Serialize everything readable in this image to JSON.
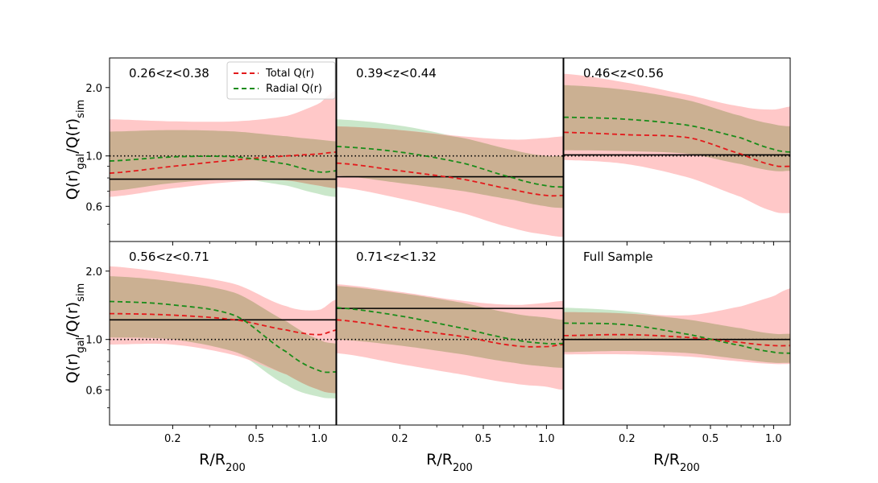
{
  "chart_data": {
    "type": "line",
    "xscale": "log",
    "yscale": "log",
    "xlim": [
      0.1,
      1.2
    ],
    "ylim": [
      0.42,
      2.7
    ],
    "xticks": [
      0.2,
      0.5,
      1.0
    ],
    "xtick_labels": [
      "0.2",
      "0.5",
      "1.0"
    ],
    "yticks": [
      0.6,
      1.0,
      2.0
    ],
    "ytick_labels": [
      "0.6",
      "1.0",
      "2.0"
    ],
    "ylabel": "Q(r)gal/Q(r)sim",
    "ylabel_main": "Q(r)",
    "ylabel_sub1": "gal",
    "ylabel_sep": "/Q(r)",
    "ylabel_sub2": "sim",
    "xlabel": "R/R200",
    "xlabel_main": "R/R",
    "xlabel_sub": "200",
    "legend": {
      "position": "top-right of first panel",
      "entries": [
        {
          "label": "Total Q(r)",
          "color": "#e31a1c",
          "style": "dashed"
        },
        {
          "label": "Radial Q(r)",
          "color": "#1a8c1a",
          "style": "dashed"
        }
      ]
    },
    "colors": {
      "total_line": "#e31a1c",
      "radial_line": "#1a8c1a",
      "total_band": "#ffb6b6",
      "radial_band": "#9fd49f",
      "overlap_band": "#c4ad8b"
    },
    "reference_line": {
      "y": 1.0,
      "style": "dotted"
    },
    "panels": [
      {
        "label": "0.26<z<0.38",
        "hline": 0.79,
        "x": [
          0.1,
          0.2,
          0.4,
          0.7,
          1.0,
          1.2
        ],
        "total": [
          0.84,
          0.9,
          0.96,
          1.0,
          1.02,
          1.04
        ],
        "radial": [
          0.95,
          0.99,
          0.99,
          0.92,
          0.85,
          0.86
        ],
        "total_band_lo": [
          0.66,
          0.72,
          0.77,
          0.78,
          0.74,
          0.72
        ],
        "total_band_hi": [
          1.45,
          1.42,
          1.42,
          1.5,
          1.7,
          1.95
        ],
        "radial_band_lo": [
          0.7,
          0.76,
          0.79,
          0.74,
          0.68,
          0.66
        ],
        "radial_band_hi": [
          1.28,
          1.3,
          1.28,
          1.22,
          1.18,
          1.16
        ]
      },
      {
        "label": "0.39<z<0.44",
        "hline": 0.81,
        "x": [
          0.1,
          0.2,
          0.4,
          0.7,
          1.0,
          1.2
        ],
        "total": [
          0.93,
          0.86,
          0.79,
          0.71,
          0.67,
          0.67
        ],
        "radial": [
          1.1,
          1.04,
          0.93,
          0.8,
          0.74,
          0.73
        ],
        "total_band_lo": [
          0.73,
          0.65,
          0.56,
          0.48,
          0.45,
          0.44
        ],
        "total_band_hi": [
          1.35,
          1.3,
          1.22,
          1.18,
          1.2,
          1.22
        ],
        "radial_band_lo": [
          0.82,
          0.76,
          0.7,
          0.64,
          0.6,
          0.59
        ],
        "radial_band_hi": [
          1.45,
          1.36,
          1.2,
          1.06,
          1.0,
          1.0
        ]
      },
      {
        "label": "0.46<z<0.56",
        "hline": 1.01,
        "x": [
          0.1,
          0.2,
          0.4,
          0.7,
          1.0,
          1.2
        ],
        "total": [
          1.27,
          1.24,
          1.2,
          1.02,
          0.91,
          0.9
        ],
        "radial": [
          1.48,
          1.45,
          1.36,
          1.2,
          1.07,
          1.04
        ],
        "total_band_lo": [
          0.96,
          0.92,
          0.8,
          0.66,
          0.57,
          0.56
        ],
        "total_band_hi": [
          2.3,
          2.1,
          1.85,
          1.65,
          1.6,
          1.65
        ],
        "radial_band_lo": [
          1.06,
          1.05,
          1.02,
          0.92,
          0.86,
          0.86
        ],
        "radial_band_hi": [
          2.05,
          1.95,
          1.75,
          1.5,
          1.38,
          1.35
        ]
      },
      {
        "label": "0.56<z<0.71",
        "hline": 1.22,
        "x": [
          0.1,
          0.2,
          0.4,
          0.7,
          1.0,
          1.2
        ],
        "total": [
          1.3,
          1.28,
          1.22,
          1.1,
          1.05,
          1.1
        ],
        "radial": [
          1.47,
          1.42,
          1.27,
          0.88,
          0.73,
          0.72
        ],
        "total_band_lo": [
          0.95,
          0.95,
          0.85,
          0.7,
          0.6,
          0.58
        ],
        "total_band_hi": [
          2.1,
          1.95,
          1.75,
          1.4,
          1.35,
          1.5
        ],
        "radial_band_lo": [
          1.02,
          1.0,
          0.88,
          0.63,
          0.56,
          0.55
        ],
        "radial_band_hi": [
          1.9,
          1.8,
          1.6,
          1.2,
          1.0,
          0.96
        ]
      },
      {
        "label": "0.71<z<1.32",
        "hline": 1.37,
        "x": [
          0.1,
          0.2,
          0.4,
          0.7,
          1.0,
          1.2
        ],
        "total": [
          1.22,
          1.12,
          1.03,
          0.94,
          0.93,
          0.95
        ],
        "radial": [
          1.38,
          1.27,
          1.12,
          1.0,
          0.96,
          0.96
        ],
        "total_band_lo": [
          0.87,
          0.78,
          0.7,
          0.64,
          0.62,
          0.6
        ],
        "total_band_hi": [
          1.75,
          1.62,
          1.48,
          1.42,
          1.45,
          1.48
        ],
        "radial_band_lo": [
          1.0,
          0.94,
          0.86,
          0.79,
          0.76,
          0.75
        ],
        "radial_band_hi": [
          1.72,
          1.6,
          1.45,
          1.3,
          1.25,
          1.22
        ]
      },
      {
        "label": "Full Sample",
        "hline": 1.0,
        "x": [
          0.1,
          0.2,
          0.4,
          0.7,
          1.0,
          1.2
        ],
        "total": [
          1.04,
          1.05,
          1.02,
          0.97,
          0.94,
          0.94
        ],
        "radial": [
          1.18,
          1.16,
          1.05,
          0.94,
          0.88,
          0.87
        ],
        "total_band_lo": [
          0.86,
          0.86,
          0.84,
          0.8,
          0.78,
          0.78
        ],
        "total_band_hi": [
          1.32,
          1.3,
          1.28,
          1.4,
          1.55,
          1.68
        ],
        "radial_band_lo": [
          0.88,
          0.89,
          0.87,
          0.82,
          0.79,
          0.79
        ],
        "radial_band_hi": [
          1.38,
          1.33,
          1.22,
          1.12,
          1.06,
          1.06
        ]
      }
    ]
  }
}
